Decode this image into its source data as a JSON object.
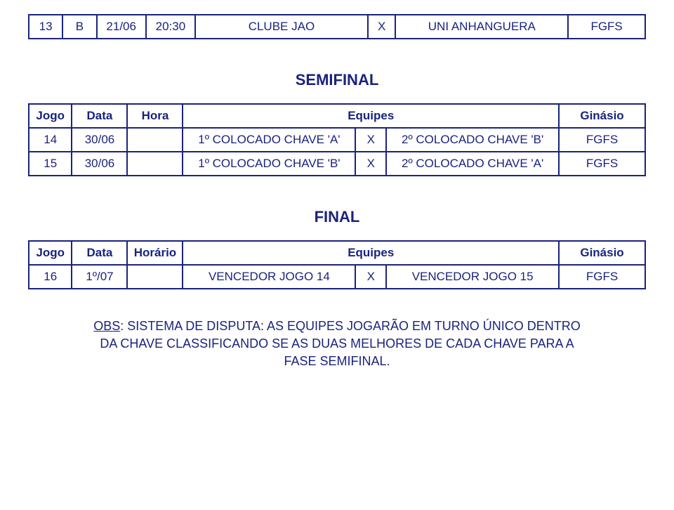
{
  "text_color": "#1a237e",
  "border_color": "#1a237e",
  "table1": {
    "rows": [
      {
        "jogo": "13",
        "chave": "B",
        "data": "21/06",
        "hora": "20:30",
        "team1": "CLUBE JAO",
        "x": "X",
        "team2": "UNI ANHANGUERA",
        "ginasio": "FGFS"
      }
    ]
  },
  "semifinal": {
    "heading": "SEMIFINAL",
    "header": {
      "jogo": "Jogo",
      "data": "Data",
      "hora": "Hora",
      "equipes": "Equipes",
      "ginasio": "Ginásio"
    },
    "rows": [
      {
        "jogo": "14",
        "data": "30/06",
        "hora": "",
        "team1": "1º COLOCADO CHAVE 'A'",
        "x": "X",
        "team2": "2º COLOCADO CHAVE 'B'",
        "ginasio": "FGFS"
      },
      {
        "jogo": "15",
        "data": "30/06",
        "hora": "",
        "team1": "1º COLOCADO CHAVE 'B'",
        "x": "X",
        "team2": "2º COLOCADO CHAVE 'A'",
        "ginasio": "FGFS"
      }
    ]
  },
  "final": {
    "heading": "FINAL",
    "header": {
      "jogo": "Jogo",
      "data": "Data",
      "hora": "Horário",
      "equipes": "Equipes",
      "ginasio": "Ginásio"
    },
    "rows": [
      {
        "jogo": "16",
        "data": "1º/07",
        "hora": "",
        "team1": "VENCEDOR JOGO 14",
        "x": "X",
        "team2": "VENCEDOR JOGO 15",
        "ginasio": "FGFS"
      }
    ]
  },
  "obs": {
    "label": "OBS",
    "text": ": SISTEMA DE DISPUTA: AS EQUIPES JOGARÃO EM TURNO ÚNICO DENTRO DA CHAVE CLASSIFICANDO SE AS DUAS MELHORES DE CADA CHAVE PARA A FASE SEMIFINAL."
  }
}
